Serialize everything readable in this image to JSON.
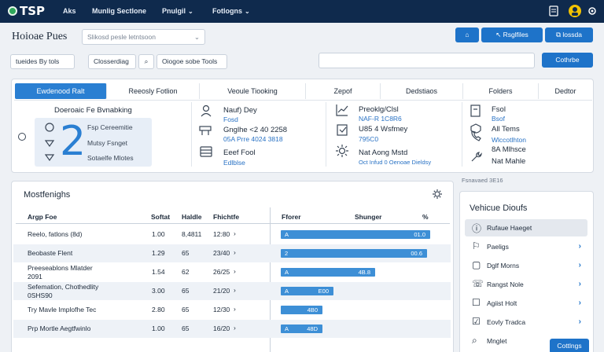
{
  "topbar": {
    "brand": "TSP",
    "nav": [
      "Aks",
      "Munlig Sectlone",
      "Pnulgil",
      "Fotlogns"
    ]
  },
  "header": {
    "title": "Hoioae Pues",
    "search_placeholder": "Slikosd pesle letntsoon",
    "buttons": [
      "Rsglfiles",
      "lossda"
    ]
  },
  "filters": {
    "filter1": "tueides By tols",
    "filter2": "Closserdiag",
    "filter3": "Oiogoe sobe Tools",
    "action": "Cothrbe"
  },
  "tabs": [
    "Ewdenood Ralt",
    "Reeosly Fotlion",
    "Veoule Tiooking",
    "Zepof",
    "Dedstiaos",
    "Folders",
    "Dedtor"
  ],
  "overview": {
    "left_title": "Doeroaic Fe Bvnabking",
    "left_items": [
      "Fsp Cereemitie",
      "Mutsy Fsnget",
      "Sotaelfe Mlotes"
    ],
    "big_digit": "2",
    "col2": {
      "a_title": "Nauf) Dey",
      "a_sub": "Fosd",
      "b_title": "Gnglhe <2 40 2258",
      "b_sub": "05A Prre 4024 3818",
      "c_title": "Eeef Fool",
      "c_sub": "Edlblse"
    },
    "col3": {
      "a_title": "Preoklg/Clsl",
      "a_sub": "NAF-R 1C8R6",
      "b_title": "U85 4 Wsfmey",
      "b_sub": "795C0",
      "c_title": "Nat Aong Mstd",
      "c_sub": "Oct Infud 0 Oenoae Dieldsy"
    },
    "col4": {
      "a_title": "Fsol",
      "a_sub": "Bsof",
      "b_title": "All Tems",
      "b_sub": "Wlccotlhton",
      "b_sub2": "8A Mlhsce",
      "c_title": "Nat Mahle"
    }
  },
  "most": {
    "title": "Mostfenighs",
    "headers": [
      "Argp Foe",
      "Softat",
      "Haldle",
      "Fhichtfe",
      "Fforer",
      "Shunger",
      "%"
    ],
    "rows": [
      {
        "name": "Reelo, fatlons (8d)",
        "name2": "",
        "a": "1.00",
        "b": "8,4811",
        "c": "12:80",
        "chev": "›",
        "bar_label": "A",
        "pct_label": "01.0",
        "pct": 0.97
      },
      {
        "name": "Beobaste Flent",
        "name2": "",
        "a": "1.29",
        "b": "65",
        "c": "23/40",
        "chev": "›",
        "bar_label": "2",
        "pct_label": "00.6",
        "pct": 0.95
      },
      {
        "name": "Preeseablons Mlatder",
        "name2": "2091",
        "a": "1.54",
        "b": "62",
        "c": "26/25",
        "chev": "›",
        "bar_label": "A",
        "pct_label": "4B.8",
        "pct": 0.61
      },
      {
        "name": "Sefemation, Chothedlity",
        "name2": "0SHS90",
        "a": "3.00",
        "b": "65",
        "c": "21/20",
        "chev": "›",
        "bar_label": "A",
        "pct_label": "E00",
        "pct": 0.34
      },
      {
        "name": "Try Mavle Implofhe Tec",
        "name2": "",
        "a": "2.80",
        "b": "65",
        "c": "12/30",
        "chev": "›",
        "bar_label": "",
        "pct_label": "4B0",
        "pct": 0.27
      },
      {
        "name": "Prp Mortle Aegtfwinlo",
        "name2": "",
        "a": "1.00",
        "b": "65",
        "c": "16/20",
        "chev": "›",
        "bar_label": "A",
        "pct_label": "48D",
        "pct": 0.27
      }
    ]
  },
  "side": {
    "caption": "Fsnavaed 3E16",
    "title": "Vehicue Dioufs",
    "items": [
      {
        "label": "Rufaue Haeget",
        "chev": "",
        "icon": "info-icon"
      },
      {
        "label": "Paeligs",
        "chev": "›",
        "icon": "flag-icon"
      },
      {
        "label": "Dglf Morns",
        "chev": "›",
        "icon": "document-icon"
      },
      {
        "label": "Rangst Nole",
        "chev": "›",
        "icon": "phone-icon"
      },
      {
        "label": "Agiist Holt",
        "chev": "›",
        "icon": "square-icon"
      },
      {
        "label": "Eovly Tradca",
        "chev": "›",
        "icon": "checkbox-icon"
      },
      {
        "label": "Mnglet",
        "chev": "",
        "icon": "search-icon"
      }
    ],
    "button": "Cottlngs"
  },
  "colors": {
    "topbar": "#0f2a4d",
    "accent": "#2a7fd2",
    "bar": "#3d8fd6"
  }
}
